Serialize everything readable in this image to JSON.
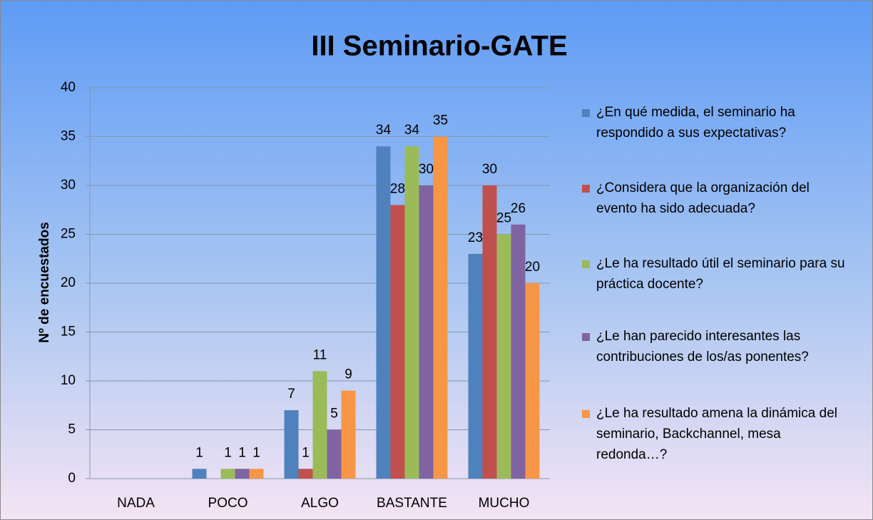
{
  "chart_data": {
    "type": "bar",
    "title": "III Seminario-GATE",
    "y_label": "Nº de encuestados",
    "categories": [
      "NADA",
      "POCO",
      "ALGO",
      "BASTANTE",
      "MUCHO"
    ],
    "series": [
      {
        "name": "¿En qué medida, el seminario ha respondido a sus expectativas?",
        "color": "#4f81bd",
        "values": [
          0,
          1,
          7,
          34,
          23
        ],
        "value_labels": [
          null,
          "1",
          "7",
          "34",
          "23"
        ]
      },
      {
        "name": "¿Considera que la organización del evento ha sido adecuada?",
        "color": "#c0504d",
        "values": [
          0,
          0,
          1,
          28,
          30
        ],
        "value_labels": [
          null,
          null,
          "1",
          "28",
          "30"
        ]
      },
      {
        "name": "¿Le ha resultado útil el seminario para su práctica docente?",
        "color": "#9bbb59",
        "values": [
          0,
          1,
          11,
          34,
          25
        ],
        "value_labels": [
          null,
          "1",
          "11",
          "34",
          "25"
        ]
      },
      {
        "name": "¿Le han parecido interesantes las contribuciones de los/as ponentes?",
        "color": "#8064a2",
        "values": [
          0,
          1,
          5,
          30,
          26
        ],
        "value_labels": [
          null,
          "1",
          "5",
          "30",
          "26"
        ]
      },
      {
        "name": "¿Le ha resultado amena la dinámica del seminario, Backchannel, mesa redonda…?",
        "color": "#f79646",
        "values": [
          0,
          1,
          9,
          35,
          20
        ],
        "value_labels": [
          null,
          "1",
          "9",
          "35",
          "20"
        ]
      }
    ],
    "ylim": [
      0,
      40
    ],
    "yticks": [
      0,
      5,
      10,
      15,
      20,
      25,
      30,
      35,
      40
    ],
    "grid": true,
    "legend": "right"
  }
}
